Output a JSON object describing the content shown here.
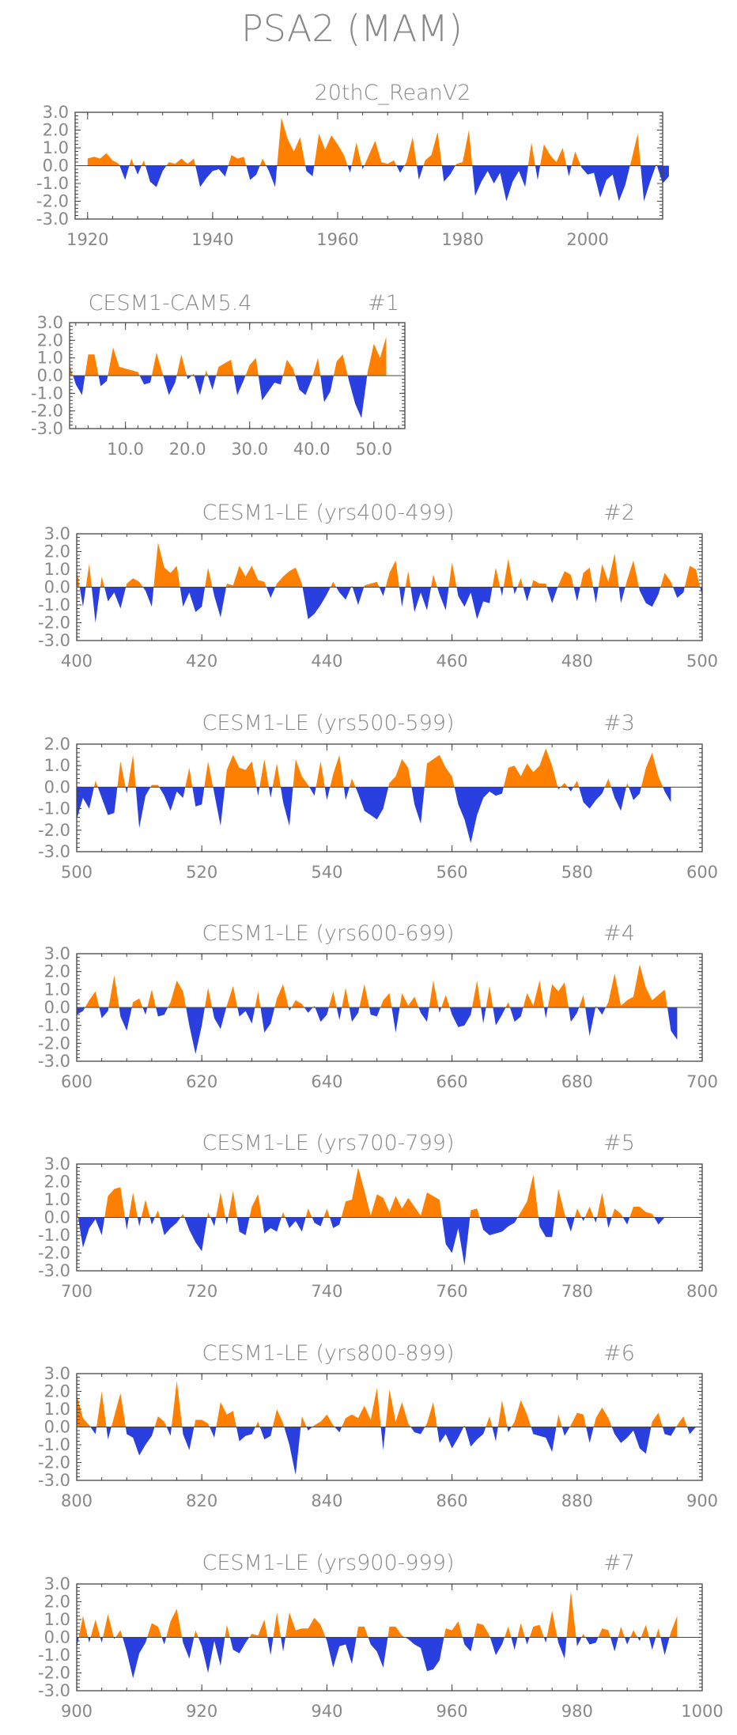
{
  "page": {
    "title": "PSA2 (MAM)"
  },
  "colors": {
    "positive": "#ff8000",
    "negative": "#2a3fe0",
    "frame": "#444444",
    "text": "#888888"
  },
  "chart_data": [
    {
      "type": "area",
      "title": "20thC_ReanV2",
      "xlim": [
        1918,
        2012
      ],
      "ylim": [
        -3.0,
        3.0
      ],
      "yticks": [
        3.0,
        2.0,
        1.0,
        0.0,
        -1.0,
        -2.0,
        -3.0
      ],
      "ytick_labels": [
        "3.0",
        "2.0",
        "1.0",
        "0.0",
        "-1.0",
        "-2.0",
        "-3.0"
      ],
      "xticks": [
        1920,
        1940,
        1960,
        1980,
        2000
      ],
      "xtick_labels": [
        "1920",
        "1940",
        "1960",
        "1980",
        "2000"
      ],
      "x_start": 1920,
      "values": [
        0.4,
        0.5,
        0.4,
        0.7,
        0.3,
        0.1,
        -0.8,
        0.4,
        -0.5,
        0.3,
        -0.9,
        -1.2,
        -0.3,
        0.2,
        0.1,
        0.4,
        0.1,
        0.4,
        -1.2,
        -0.7,
        -0.3,
        -0.2,
        -0.6,
        0.6,
        0.4,
        0.5,
        -0.8,
        -0.5,
        0.4,
        -0.3,
        -1.2,
        2.7,
        1.5,
        0.8,
        1.6,
        -0.3,
        -0.6,
        1.8,
        0.9,
        1.7,
        1.2,
        0.6,
        -0.4,
        1.3,
        -0.2,
        0.6,
        1.4,
        0.2,
        0.1,
        0.3,
        -0.4,
        0.2,
        1.6,
        -0.8,
        0.3,
        0.6,
        1.9,
        -0.9,
        -0.5,
        0.1,
        0.2,
        2.0,
        -1.7,
        -0.9,
        -0.3,
        -1.0,
        -0.4,
        -2.0,
        -0.9,
        -0.3,
        -1.2,
        1.3,
        -0.8,
        1.2,
        0.6,
        0.2,
        1.0,
        -0.6,
        0.8,
        -0.1,
        -0.5,
        -0.4,
        -1.8,
        -0.8,
        -0.5,
        -2.0,
        -1.1,
        0.3,
        1.8,
        -2.0,
        -0.9,
        0.1,
        -1.0,
        -0.6
      ],
      "tick_len": 7,
      "show_minor_y": true,
      "slot": 0
    },
    {
      "type": "area",
      "title": "CESM1-CAM5.4",
      "subtitle": "#1",
      "xlim": [
        1,
        55
      ],
      "ylim": [
        -3.0,
        3.0
      ],
      "yticks": [
        3.0,
        2.0,
        1.0,
        0.0,
        -1.0,
        -2.0,
        -3.0
      ],
      "ytick_labels": [
        "3.0",
        "2.0",
        "1.0",
        "0.0",
        "-1.0",
        "-2.0",
        "-3.0"
      ],
      "xticks": [
        10,
        20,
        30,
        40,
        50
      ],
      "xtick_labels": [
        "10.0",
        "20.0",
        "30.0",
        "40.0",
        "50.0"
      ],
      "x_start": 1,
      "values": [
        0.6,
        -0.5,
        -1.1,
        1.2,
        1.2,
        -0.6,
        -0.3,
        1.6,
        0.5,
        0.4,
        0.3,
        0.2,
        -0.5,
        -0.4,
        1.3,
        0.1,
        -1.1,
        -0.4,
        1.2,
        -0.2,
        0.1,
        -1.1,
        0.3,
        -0.8,
        0.5,
        0.7,
        0.9,
        -1.1,
        -0.3,
        0.6,
        1.0,
        -1.4,
        -0.9,
        -0.4,
        -0.5,
        0.9,
        0.4,
        -0.8,
        -1.1,
        -0.2,
        1.0,
        -1.5,
        -0.9,
        0.8,
        1.2,
        -0.3,
        -1.6,
        -2.4,
        0.2,
        1.8,
        1.0,
        2.2
      ],
      "tick_len": 7,
      "show_minor_y": true,
      "slot": 1
    },
    {
      "type": "area",
      "title": "CESM1-LE (yrs400-499)",
      "subtitle": "#2",
      "xlim": [
        400,
        500
      ],
      "ylim": [
        -3.0,
        3.0
      ],
      "yticks": [
        3.0,
        2.0,
        1.0,
        0.0,
        -1.0,
        -2.0,
        -3.0
      ],
      "ytick_labels": [
        "3.0",
        "2.0",
        "1.0",
        "0.0",
        "-1.0",
        "-2.0",
        "-3.0"
      ],
      "xticks": [
        400,
        420,
        440,
        460,
        480,
        500
      ],
      "xtick_labels": [
        "400",
        "420",
        "440",
        "460",
        "480",
        "500"
      ],
      "x_start": 400,
      "values": [
        1.0,
        -1.1,
        1.3,
        -2.0,
        0.6,
        -0.8,
        -0.3,
        -1.2,
        0.2,
        0.5,
        0.3,
        -0.2,
        -1.1,
        2.5,
        1.1,
        0.8,
        1.2,
        -1.1,
        -0.3,
        -1.4,
        -1.1,
        1.1,
        -0.5,
        -1.7,
        0.2,
        0.1,
        1.2,
        0.6,
        1.2,
        0.4,
        0.3,
        -0.6,
        0.2,
        0.6,
        0.9,
        1.1,
        0.2,
        -1.8,
        -1.5,
        -1.0,
        -0.4,
        0.3,
        -0.3,
        -0.7,
        0.1,
        -1.0,
        0.1,
        0.2,
        0.3,
        -0.5,
        0.8,
        1.5,
        -1.1,
        0.9,
        -1.4,
        -0.3,
        -1.3,
        0.7,
        -0.4,
        -1.3,
        1.4,
        -0.5,
        -1.1,
        -0.3,
        -1.8,
        -0.8,
        -0.9,
        1.1,
        -0.5,
        1.6,
        -0.4,
        0.5,
        -0.8,
        0.4,
        0.2,
        0.2,
        -0.9,
        0.1,
        0.9,
        0.7,
        -0.8,
        0.8,
        1.1,
        -0.9,
        1.3,
        0.3,
        1.9,
        -0.9,
        0.4,
        1.5,
        -0.2,
        -0.9,
        -1.1,
        -0.4,
        0.8,
        0.3,
        -0.6,
        -0.3,
        1.2,
        1.0,
        -0.5
      ],
      "tick_len": 6,
      "show_minor_y": true,
      "slot": 2
    },
    {
      "type": "area",
      "title": "CESM1-LE (yrs500-599)",
      "subtitle": "#3",
      "xlim": [
        500,
        600
      ],
      "ylim": [
        -3.0,
        2.0
      ],
      "yticks": [
        2.0,
        1.0,
        0.0,
        -1.0,
        -2.0,
        -3.0
      ],
      "ytick_labels": [
        "2.0",
        "1.0",
        "0.0",
        "-1.0",
        "-2.0",
        "-3.0"
      ],
      "xticks": [
        500,
        520,
        540,
        560,
        580,
        600
      ],
      "xtick_labels": [
        "500",
        "520",
        "540",
        "560",
        "580",
        "600"
      ],
      "x_start": 500,
      "values": [
        -1.5,
        -0.5,
        -1.0,
        0.3,
        -0.5,
        -1.3,
        -1.2,
        1.2,
        -0.3,
        1.5,
        -1.9,
        -0.4,
        0.1,
        0.1,
        -0.4,
        -1.1,
        -0.2,
        -0.5,
        0.9,
        -0.9,
        -0.8,
        1.2,
        -0.3,
        -1.8,
        0.8,
        1.5,
        0.9,
        0.8,
        1.2,
        -0.4,
        1.3,
        -0.5,
        1.1,
        -0.7,
        -1.8,
        1.3,
        0.5,
        0.1,
        -0.4,
        1.2,
        -0.6,
        0.6,
        1.5,
        -0.6,
        0.4,
        -0.3,
        -1.1,
        -1.3,
        -1.5,
        -1.0,
        0.2,
        0.5,
        1.3,
        0.9,
        -0.8,
        -1.7,
        1.1,
        1.3,
        1.5,
        0.9,
        0.5,
        -0.8,
        -1.5,
        -2.6,
        -1.3,
        -0.5,
        -0.2,
        -0.4,
        -0.3,
        0.9,
        1.0,
        0.5,
        1.1,
        0.7,
        1.0,
        1.8,
        1.0,
        -0.1,
        0.2,
        -0.2,
        0.3,
        -0.7,
        -1.0,
        -0.6,
        -0.3,
        0.4,
        -0.5,
        -1.1,
        0.2,
        -0.6,
        -0.3,
        0.9,
        1.6,
        0.5,
        -0.2,
        -0.7
      ],
      "tick_len": 6,
      "show_minor_y": true,
      "slot": 3
    },
    {
      "type": "area",
      "title": "CESM1-LE (yrs600-699)",
      "subtitle": "#4",
      "xlim": [
        600,
        700
      ],
      "ylim": [
        -3.0,
        3.0
      ],
      "yticks": [
        3.0,
        2.0,
        1.0,
        0.0,
        -1.0,
        -2.0,
        -3.0
      ],
      "ytick_labels": [
        "3.0",
        "2.0",
        "1.0",
        "0.0",
        "-1.0",
        "-2.0",
        "-3.0"
      ],
      "xticks": [
        600,
        620,
        640,
        660,
        680,
        700
      ],
      "xtick_labels": [
        "600",
        "620",
        "640",
        "660",
        "680",
        "700"
      ],
      "x_start": 600,
      "values": [
        -0.4,
        -0.2,
        0.4,
        0.9,
        -0.6,
        -0.2,
        1.8,
        -0.5,
        -1.3,
        0.3,
        0.5,
        -0.4,
        1.0,
        -0.5,
        -0.4,
        0.3,
        1.5,
        0.9,
        -1.0,
        -2.6,
        -1.0,
        1.1,
        -0.6,
        -1.2,
        0.1,
        1.2,
        -0.5,
        -0.2,
        -0.9,
        0.9,
        -1.4,
        -0.9,
        0.5,
        1.3,
        -0.2,
        0.4,
        0.2,
        -0.3,
        0.1,
        -0.8,
        -0.4,
        0.9,
        -0.7,
        1.1,
        -0.8,
        -0.3,
        1.3,
        -0.4,
        -0.5,
        0.4,
        0.8,
        -1.4,
        0.8,
        0.1,
        0.6,
        -0.3,
        -0.8,
        1.5,
        -0.3,
        0.7,
        -0.4,
        -1.1,
        -1.0,
        -0.4,
        1.5,
        -0.9,
        1.2,
        -1.0,
        -0.4,
        0.3,
        -0.8,
        -0.5,
        0.8,
        0.1,
        1.5,
        -0.6,
        1.3,
        0.9,
        1.4,
        -0.8,
        -0.3,
        0.7,
        -1.6,
        0.1,
        -0.4,
        0.3,
        1.9,
        0.1,
        0.4,
        0.6,
        2.4,
        1.1,
        0.4,
        0.7,
        1.0,
        -1.3,
        -1.8
      ],
      "tick_len": 6,
      "show_minor_y": true,
      "slot": 4
    },
    {
      "type": "area",
      "title": "CESM1-LE (yrs700-799)",
      "subtitle": "#5",
      "xlim": [
        700,
        800
      ],
      "ylim": [
        -3.0,
        3.0
      ],
      "yticks": [
        3.0,
        2.0,
        1.0,
        0.0,
        -1.0,
        -2.0,
        -3.0
      ],
      "ytick_labels": [
        "3.0",
        "2.0",
        "1.0",
        "0.0",
        "-1.0",
        "-2.0",
        "-3.0"
      ],
      "xticks": [
        700,
        720,
        740,
        760,
        780,
        800
      ],
      "xtick_labels": [
        "700",
        "720",
        "740",
        "760",
        "780",
        "800"
      ],
      "x_start": 700,
      "values": [
        0.5,
        -1.7,
        -0.6,
        -0.1,
        -1.0,
        1.2,
        1.6,
        1.7,
        -0.7,
        1.4,
        -0.5,
        1.0,
        -0.4,
        0.4,
        -1.0,
        -0.6,
        -0.3,
        0.2,
        -0.7,
        -1.4,
        -1.9,
        0.3,
        -0.5,
        1.4,
        -0.4,
        1.5,
        -0.8,
        -1.0,
        0.6,
        1.3,
        -0.9,
        -0.6,
        -0.8,
        0.3,
        -0.6,
        -0.2,
        -0.8,
        0.5,
        -0.3,
        -0.5,
        0.5,
        -0.6,
        -0.4,
        0.9,
        1.0,
        2.8,
        1.5,
        0.1,
        1.3,
        1.1,
        0.3,
        1.2,
        0.5,
        1.1,
        0.6,
        0.1,
        1.4,
        1.2,
        1.0,
        -1.5,
        -2.0,
        -0.6,
        -2.7,
        0.4,
        0.5,
        -0.7,
        -1.0,
        -0.9,
        -0.8,
        -0.5,
        -0.3,
        0.3,
        0.9,
        2.4,
        -0.5,
        -1.1,
        -1.1,
        1.6,
        0.2,
        -0.8,
        0.5,
        -0.2,
        0.6,
        -0.3,
        1.4,
        -0.6,
        0.5,
        0.2,
        -0.4,
        0.6,
        0.6,
        0.3,
        0.2,
        -0.4,
        0.0
      ],
      "tick_len": 6,
      "show_minor_y": true,
      "slot": 5
    },
    {
      "type": "area",
      "title": "CESM1-LE (yrs800-899)",
      "subtitle": "#6",
      "xlim": [
        800,
        900
      ],
      "ylim": [
        -3.0,
        3.0
      ],
      "yticks": [
        3.0,
        2.0,
        1.0,
        0.0,
        -1.0,
        -2.0,
        -3.0
      ],
      "ytick_labels": [
        "3.0",
        "2.0",
        "1.0",
        "0.0",
        "-1.0",
        "-2.0",
        "-3.0"
      ],
      "xticks": [
        800,
        820,
        840,
        860,
        880,
        900
      ],
      "xtick_labels": [
        "800",
        "820",
        "840",
        "860",
        "880",
        "900"
      ],
      "x_start": 800,
      "values": [
        1.8,
        0.5,
        0.1,
        -0.4,
        2.0,
        -0.7,
        0.6,
        1.9,
        -0.4,
        -0.6,
        -1.6,
        -1.0,
        -0.5,
        0.6,
        0.3,
        -0.5,
        2.6,
        -0.4,
        -1.3,
        0.4,
        0.4,
        0.2,
        -0.6,
        1.4,
        0.7,
        0.9,
        -0.8,
        -0.5,
        -0.4,
        0.3,
        -0.7,
        -0.5,
        1.0,
        0.2,
        -1.0,
        -2.7,
        0.6,
        -0.2,
        0.1,
        0.3,
        0.7,
        0.1,
        -0.3,
        0.5,
        0.7,
        0.5,
        1.2,
        0.4,
        2.2,
        -1.3,
        2.1,
        0.3,
        1.4,
        0.2,
        -0.3,
        -0.4,
        0.2,
        1.4,
        -0.9,
        -0.4,
        -1.2,
        -0.6,
        0.1,
        -1.1,
        -0.7,
        -0.4,
        0.6,
        -0.8,
        1.5,
        -0.3,
        0.3,
        1.5,
        0.7,
        -0.4,
        -0.5,
        -0.6,
        -1.4,
        0.7,
        -0.5,
        0.1,
        0.8,
        0.7,
        -0.9,
        0.5,
        1.1,
        0.5,
        -0.4,
        -0.9,
        -0.6,
        -0.2,
        -1.2,
        -1.5,
        0.3,
        0.8,
        -0.4,
        -0.5,
        0.1,
        0.6,
        -0.4,
        0.0
      ],
      "tick_len": 6,
      "show_minor_y": true,
      "slot": 6
    },
    {
      "type": "area",
      "title": "CESM1-LE (yrs900-999)",
      "subtitle": "#7",
      "xlim": [
        900,
        1000
      ],
      "ylim": [
        -3.0,
        3.0
      ],
      "yticks": [
        3.0,
        2.0,
        1.0,
        0.0,
        -1.0,
        -2.0,
        -3.0
      ],
      "ytick_labels": [
        "3.0",
        "2.0",
        "1.0",
        "0.0",
        "-1.0",
        "-2.0",
        "-3.0"
      ],
      "xticks": [
        900,
        920,
        940,
        960,
        980,
        1000
      ],
      "xtick_labels": [
        "900",
        "920",
        "940",
        "960",
        "980",
        "1000"
      ],
      "x_start": 900,
      "values": [
        -0.6,
        1.2,
        -0.3,
        1.0,
        -0.3,
        1.3,
        -0.1,
        0.4,
        -0.8,
        -2.3,
        -0.9,
        -0.3,
        0.8,
        0.6,
        -0.4,
        0.9,
        1.6,
        -0.3,
        -1.2,
        0.4,
        -0.5,
        -2.0,
        -0.2,
        -1.6,
        0.7,
        -0.7,
        -0.9,
        -0.3,
        0.2,
        0.1,
        1.0,
        -1.0,
        1.4,
        -0.8,
        1.4,
        0.4,
        0.5,
        0.5,
        1.1,
        0.7,
        -0.2,
        -1.7,
        -0.5,
        -0.4,
        -1.5,
        0.6,
        0.6,
        -0.4,
        -0.8,
        -1.7,
        0.6,
        0.6,
        0.1,
        -0.1,
        -0.4,
        -0.6,
        -1.9,
        -1.8,
        -1.3,
        0.5,
        0.4,
        0.9,
        -0.4,
        -0.8,
        0.8,
        0.7,
        0.1,
        -1.0,
        -0.4,
        0.6,
        -0.7,
        0.8,
        -0.4,
        0.6,
        0.7,
        -0.3,
        1.5,
        -0.3,
        -1.2,
        2.6,
        -0.5,
        0.2,
        -0.4,
        -0.3,
        0.5,
        0.4,
        -0.8,
        0.6,
        -0.4,
        0.4,
        -0.2,
        0.7,
        -0.7,
        0.5,
        -1.0,
        0.3,
        1.2
      ],
      "tick_len": 6,
      "show_minor_y": true,
      "slot": 7
    }
  ]
}
